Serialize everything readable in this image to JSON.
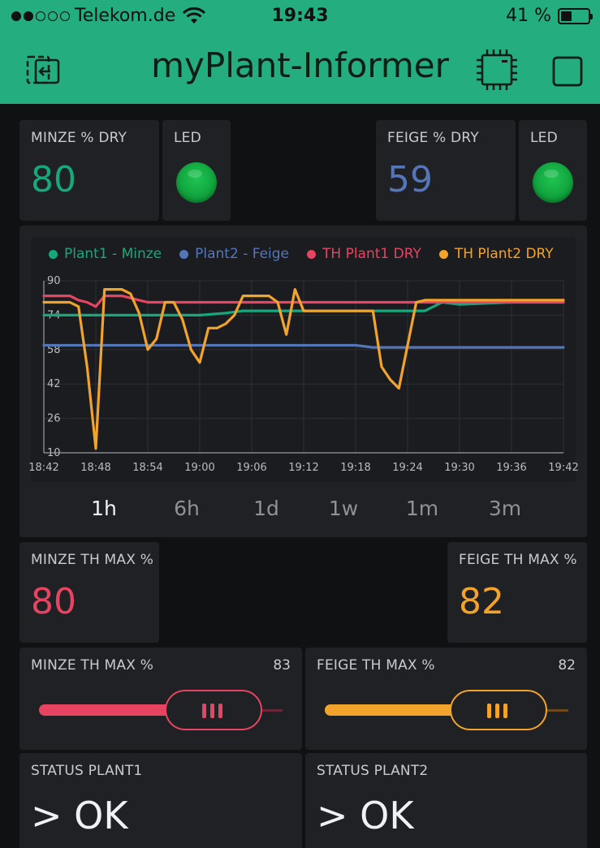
{
  "status_bar": {
    "carrier": "Telekom.de",
    "time": "19:43",
    "battery": "41 %",
    "battery_level": 0.41,
    "signal_bars": 2
  },
  "app": {
    "title": "myPlant-Informer",
    "icons": {
      "back": "exit-app-icon",
      "device": "chip-icon",
      "menu": "square-icon"
    }
  },
  "colors": {
    "header": "#24ad7e",
    "minze": "#16a77d",
    "feige": "#5476b9",
    "th1": "#e64461",
    "th2": "#f2a32c",
    "led": "#11a83f"
  },
  "widgets": {
    "minze_dry": {
      "label": "MINZE % DRY",
      "value": "80"
    },
    "minze_led": {
      "label": "LED",
      "state": "on"
    },
    "feige_dry": {
      "label": "FEIGE % DRY",
      "value": "59"
    },
    "feige_led": {
      "label": "LED",
      "state": "on"
    },
    "minze_th_max": {
      "label": "MINZE TH MAX %",
      "value": "80"
    },
    "feige_th_max": {
      "label": "FEIGE TH MAX %",
      "value": "82"
    },
    "minze_slider": {
      "label": "MINZE TH MAX %",
      "value": "83",
      "fraction": 0.83
    },
    "feige_slider": {
      "label": "FEIGE TH MAX %",
      "value": "82",
      "fraction": 0.82
    },
    "status1": {
      "label": "STATUS PLANT1",
      "value": "> OK"
    },
    "status2": {
      "label": "STATUS PLANT2",
      "value": "> OK"
    }
  },
  "time_ranges": [
    "1h",
    "6h",
    "1d",
    "1w",
    "1m",
    "3m"
  ],
  "active_range": "1h",
  "chart_data": {
    "type": "line",
    "title": "",
    "xlabel": "",
    "ylabel": "",
    "ylim": [
      10,
      90
    ],
    "y_ticks": [
      "90",
      "74",
      "58",
      "42",
      "26",
      "10"
    ],
    "x_ticks": [
      "18:42",
      "18:48",
      "18:54",
      "19:00",
      "19:06",
      "19:12",
      "19:18",
      "19:24",
      "19:30",
      "19:36",
      "19:42"
    ],
    "xlim": [
      "18:42",
      "19:42"
    ],
    "grid": true,
    "legend_position": "top",
    "series": [
      {
        "name": "Plant1 - Minze",
        "color": "#16a77d",
        "x": [
          "18:42",
          "18:44",
          "18:55",
          "19:00",
          "19:03",
          "19:05",
          "19:12",
          "19:24",
          "19:26",
          "19:28",
          "19:30",
          "19:36",
          "19:42"
        ],
        "y": [
          74,
          74,
          74,
          74,
          75,
          76,
          76,
          76,
          76,
          80,
          79,
          80,
          80
        ]
      },
      {
        "name": "Plant2 - Feige",
        "color": "#5476b9",
        "x": [
          "18:42",
          "18:57",
          "19:06",
          "19:12",
          "19:18",
          "19:20",
          "19:24",
          "19:30",
          "19:42"
        ],
        "y": [
          60,
          60,
          60,
          60,
          60,
          59,
          59,
          59,
          59
        ]
      },
      {
        "name": "TH Plant1 DRY",
        "color": "#e64461",
        "x": [
          "18:42",
          "18:45",
          "18:46",
          "18:47",
          "18:48",
          "18:49",
          "18:50",
          "18:51",
          "18:52",
          "18:53",
          "18:54",
          "18:56",
          "19:12",
          "19:24",
          "19:42"
        ],
        "y": [
          83,
          83,
          81,
          80,
          78,
          83,
          83,
          83,
          82,
          81,
          80,
          80,
          80,
          80,
          80
        ]
      },
      {
        "name": "TH Plant2 DRY",
        "color": "#f2a32c",
        "x": [
          "18:42",
          "18:45",
          "18:46",
          "18:47",
          "18:48",
          "18:49",
          "18:51",
          "18:52",
          "18:53",
          "18:54",
          "18:55",
          "18:56",
          "18:57",
          "18:58",
          "18:59",
          "19:00",
          "19:01",
          "19:02",
          "19:03",
          "19:04",
          "19:05",
          "19:07",
          "19:08",
          "19:09",
          "19:10",
          "19:11",
          "19:12",
          "19:14",
          "19:20",
          "19:21",
          "19:22",
          "19:23",
          "19:24",
          "19:25",
          "19:26",
          "19:30",
          "19:42"
        ],
        "y": [
          80,
          80,
          78,
          50,
          12,
          86,
          86,
          84,
          75,
          58,
          63,
          80,
          80,
          72,
          58,
          52,
          68,
          68,
          70,
          74,
          83,
          83,
          83,
          80,
          65,
          86,
          76,
          76,
          76,
          50,
          44,
          40,
          60,
          80,
          81,
          81,
          81
        ]
      }
    ]
  }
}
